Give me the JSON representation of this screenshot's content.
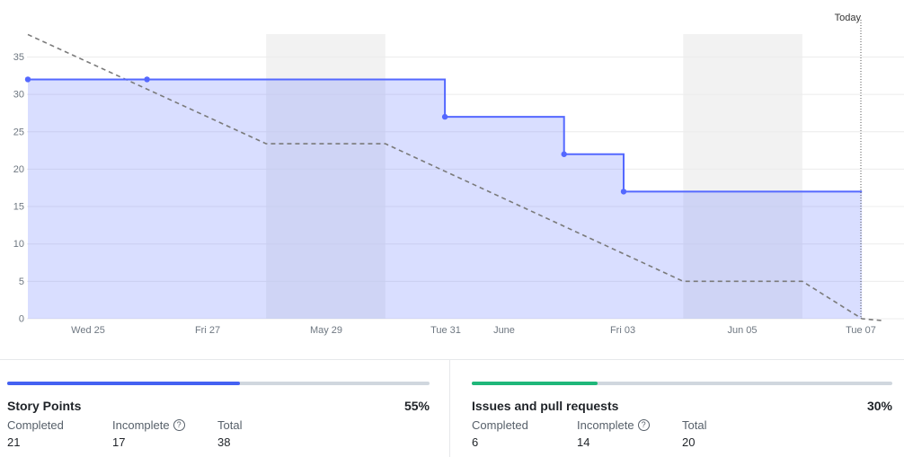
{
  "chart_data": {
    "type": "line",
    "x_labels": [
      "Wed 25",
      "Fri 27",
      "May 29",
      "Tue 31",
      "June",
      "Fri 03",
      "Jun 05",
      "Tue 07"
    ],
    "y_ticks": [
      0,
      5,
      10,
      15,
      20,
      25,
      30,
      35
    ],
    "today_label": "Today",
    "weekend_bands": [
      [
        "Sat 28",
        "Sun 29"
      ],
      [
        "Sat 04",
        "Sun 05"
      ]
    ],
    "series": [
      {
        "style": "solid-step-area",
        "color": "#5468ff",
        "points": [
          {
            "date": "May 24",
            "value": 32
          },
          {
            "date": "May 26",
            "value": 32
          },
          {
            "date": "May 31",
            "value": 27
          },
          {
            "date": "Jun 02",
            "value": 22
          },
          {
            "date": "Jun 03",
            "value": 17
          },
          {
            "date": "Jun 07",
            "value": 17
          }
        ]
      },
      {
        "style": "dashed",
        "color": "#7a7a7a",
        "points": [
          {
            "date": "May 24",
            "value": 38
          },
          {
            "date": "May 28",
            "value": 23.4
          },
          {
            "date": "May 30",
            "value": 23.4
          },
          {
            "date": "Jun 04",
            "value": 5
          },
          {
            "date": "Jun 06",
            "value": 5
          },
          {
            "date": "Jun 07",
            "value": 0
          }
        ]
      }
    ]
  },
  "panels": [
    {
      "title": "Story Points",
      "percent": "55%",
      "progress": 0.55,
      "color": "#4461f2",
      "completed_label": "Completed",
      "completed": "21",
      "incomplete_label": "Incomplete",
      "incomplete": "17",
      "total_label": "Total",
      "total": "38"
    },
    {
      "title": "Issues and pull requests",
      "percent": "30%",
      "progress": 0.3,
      "color": "#1fb77a",
      "completed_label": "Completed",
      "completed": "6",
      "incomplete_label": "Incomplete",
      "incomplete": "14",
      "total_label": "Total",
      "total": "20"
    }
  ]
}
